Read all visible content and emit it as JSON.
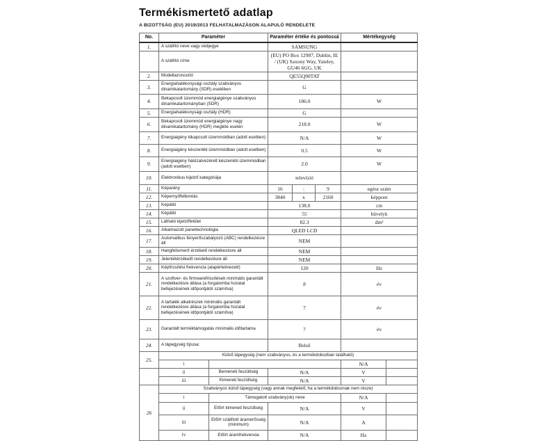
{
  "page": {
    "title": "Termékismertető adatlap",
    "subtitle": "A BIZOTTSÁG (EU) 2019/2013 FELHATALMAZÁSON ALAPULÓ RENDELETE"
  },
  "table": {
    "headers": [
      "No.",
      "Paraméter",
      "Paraméter értéke és pontossá",
      "Mértékegység"
    ],
    "rows": [
      {
        "name": "header-row",
        "cells": [
          {
            "t": "No.",
            "s": "hdr"
          },
          {
            "t": "Paraméter",
            "c": 2,
            "s": "hdr"
          },
          {
            "t": "Paraméter értéke és pontossá",
            "c": 3,
            "s": "hdr"
          },
          {
            "t": "Mértékegység",
            "c": 2,
            "s": "hdr"
          }
        ]
      },
      {
        "cells": [
          {
            "t": "1.",
            "s": "no"
          },
          {
            "t": "A szállító neve vagy védjegye",
            "c": 2,
            "s": "lbl"
          },
          {
            "t": "SAMSUNG",
            "c": 3,
            "s": "val"
          },
          {
            "t": "",
            "c": 2,
            "s": "unit"
          }
        ]
      },
      {
        "cells": [
          {
            "t": "",
            "s": "no"
          },
          {
            "t": "A szállító címe",
            "c": 2,
            "s": "lbl"
          },
          {
            "t": "(EU) PO Box 12987, Dublin, IE / (UK) Saxony Way, Yateley, GU46 6GG, UK",
            "c": 3,
            "s": "val"
          },
          {
            "t": "",
            "c": 2,
            "s": "unit"
          }
        ]
      },
      {
        "cells": [
          {
            "t": "2.",
            "s": "no"
          },
          {
            "t": "Modellazonosító",
            "c": 2,
            "s": "lbl"
          },
          {
            "t": "QE55Q90TAT",
            "c": 3,
            "s": "val"
          },
          {
            "t": "",
            "c": 2,
            "s": "unit"
          }
        ]
      },
      {
        "cells": [
          {
            "t": "3.",
            "s": "no"
          },
          {
            "t": "Energiahatékonysági osztály szabványos dinamikatartomány (SDR) esetében",
            "c": 2,
            "s": "lbl"
          },
          {
            "t": "G",
            "c": 3,
            "s": "val"
          },
          {
            "t": "",
            "c": 2,
            "s": "unit"
          }
        ]
      },
      {
        "cells": [
          {
            "t": "4.",
            "s": "no"
          },
          {
            "t": "Bekapcsolt üzemmód energiaigénye szabványos dinamikatartományban (SDR)",
            "c": 2,
            "s": "lbl"
          },
          {
            "t": "186.0",
            "c": 3,
            "s": "val"
          },
          {
            "t": "W",
            "c": 2,
            "s": "unit"
          }
        ]
      },
      {
        "cells": [
          {
            "t": "5.",
            "s": "no"
          },
          {
            "t": "Energiahatékonysági osztály (HDR)",
            "c": 2,
            "s": "lbl"
          },
          {
            "t": "G",
            "c": 3,
            "s": "val"
          },
          {
            "t": "",
            "c": 2,
            "s": "unit"
          }
        ]
      },
      {
        "cells": [
          {
            "t": "6.",
            "s": "no"
          },
          {
            "t": "Bekapcsolt üzemmód energiaigénye nagy dinamikatartomány (HDR) megléte esetén",
            "c": 2,
            "s": "lbl"
          },
          {
            "t": "218.0",
            "c": 3,
            "s": "val"
          },
          {
            "t": "W",
            "c": 2,
            "s": "unit"
          }
        ]
      },
      {
        "cells": [
          {
            "t": "7.",
            "s": "no"
          },
          {
            "t": "Energiaigény kikapcsolt üzemmódban (adott esetben)",
            "c": 2,
            "s": "lbl"
          },
          {
            "t": "N/A",
            "c": 3,
            "s": "val"
          },
          {
            "t": "W",
            "c": 2,
            "s": "unit"
          }
        ]
      },
      {
        "cells": [
          {
            "t": "8.",
            "s": "no"
          },
          {
            "t": "Energiaigény készenléti üzemmódban (adott esetben)",
            "c": 2,
            "s": "lbl"
          },
          {
            "t": "0.5",
            "c": 3,
            "s": "val"
          },
          {
            "t": "W",
            "c": 2,
            "s": "unit"
          }
        ]
      },
      {
        "cells": [
          {
            "t": "9.",
            "s": "no"
          },
          {
            "t": "Energiaigény hálózatvezérelt készenléti üzemmódban (adott esetben)",
            "c": 2,
            "s": "lbl"
          },
          {
            "t": "2.0",
            "c": 3,
            "s": "val"
          },
          {
            "t": "W",
            "c": 2,
            "s": "unit"
          }
        ]
      },
      {
        "cells": [
          {
            "t": "10.",
            "s": "no"
          },
          {
            "t": "Elektronikus kijelző kategóriája",
            "c": 2,
            "s": "lbl"
          },
          {
            "t": "televízió",
            "c": 3,
            "s": "val"
          },
          {
            "t": "",
            "c": 2,
            "s": "unit"
          }
        ]
      },
      {
        "cells": [
          {
            "t": "11.",
            "s": "no"
          },
          {
            "t": "Képarány",
            "c": 2,
            "s": "lbl"
          },
          {
            "t": "16",
            "s": "val"
          },
          {
            "t": ":",
            "s": "val"
          },
          {
            "t": "9",
            "s": "val"
          },
          {
            "t": "egész szám",
            "c": 2,
            "s": "unit"
          }
        ]
      },
      {
        "cells": [
          {
            "t": "12.",
            "s": "no"
          },
          {
            "t": "Képernyőfelbontás",
            "c": 2,
            "s": "lbl"
          },
          {
            "t": "3840",
            "s": "val"
          },
          {
            "t": "x",
            "s": "val"
          },
          {
            "t": "2160",
            "s": "val"
          },
          {
            "t": "képpont",
            "c": 2,
            "s": "unit"
          }
        ]
      },
      {
        "cells": [
          {
            "t": "13.",
            "s": "no"
          },
          {
            "t": "Képátló",
            "c": 2,
            "s": "lbl"
          },
          {
            "t": "138.0",
            "c": 3,
            "s": "val"
          },
          {
            "t": "cm",
            "c": 2,
            "s": "unit"
          }
        ]
      },
      {
        "cells": [
          {
            "t": "14.",
            "s": "no"
          },
          {
            "t": "Képátló",
            "c": 2,
            "s": "lbl"
          },
          {
            "t": "55",
            "c": 3,
            "s": "val"
          },
          {
            "t": "hüvelyk",
            "c": 2,
            "s": "unit"
          }
        ]
      },
      {
        "cells": [
          {
            "t": "15.",
            "s": "no"
          },
          {
            "t": "Látható kijelzőfelület",
            "c": 2,
            "s": "lbl"
          },
          {
            "t": "82.3",
            "c": 3,
            "s": "val"
          },
          {
            "t": "dm²",
            "c": 2,
            "s": "unit"
          }
        ]
      },
      {
        "cells": [
          {
            "t": "16.",
            "s": "no"
          },
          {
            "t": "Alkalmazott paneltechnológia",
            "c": 2,
            "s": "lbl"
          },
          {
            "t": "QLED LCD",
            "c": 3,
            "s": "val"
          },
          {
            "t": "",
            "c": 2,
            "s": "unit"
          }
        ]
      },
      {
        "cells": [
          {
            "t": "17.",
            "s": "no"
          },
          {
            "t": "Automatikus fényerőszabályozó (ABC) rendelkezésre áll",
            "c": 2,
            "s": "lbl"
          },
          {
            "t": "NEM",
            "c": 3,
            "s": "val"
          },
          {
            "t": "",
            "c": 2,
            "s": "unit"
          }
        ]
      },
      {
        "cells": [
          {
            "t": "18.",
            "s": "no"
          },
          {
            "t": "Hangfelismerő érzékelő rendelkezésre áll",
            "c": 2,
            "s": "lbl"
          },
          {
            "t": "NEM",
            "c": 3,
            "s": "val"
          },
          {
            "t": "",
            "c": 2,
            "s": "unit"
          }
        ]
      },
      {
        "cells": [
          {
            "t": "19.",
            "s": "no"
          },
          {
            "t": "Jelenlétérzékelő rendelkezésre áll",
            "c": 2,
            "s": "lbl"
          },
          {
            "t": "NEM",
            "c": 3,
            "s": "val"
          },
          {
            "t": "",
            "c": 2,
            "s": "unit"
          }
        ]
      },
      {
        "cells": [
          {
            "t": "20.",
            "s": "no"
          },
          {
            "t": "Képfrissítési frekvencia (alapértelmezett)",
            "c": 2,
            "s": "lbl"
          },
          {
            "t": "120",
            "c": 3,
            "s": "val"
          },
          {
            "t": "Hz",
            "c": 2,
            "s": "unit"
          }
        ]
      },
      {
        "cells": [
          {
            "t": "21.",
            "s": "no"
          },
          {
            "t": "A szoftver- és firmwarefrissítések minimális garantált rendelkezésre állása (a forgalomba hozatal befejezésének időpontjától számítva)",
            "c": 2,
            "s": "lbl"
          },
          {
            "t": "8",
            "c": 3,
            "s": "val"
          },
          {
            "t": "év",
            "c": 2,
            "s": "unit"
          }
        ]
      },
      {
        "cells": [
          {
            "t": "22.",
            "s": "no"
          },
          {
            "t": "A tartalék alkatrészek minimális garantált rendelkezésre állása (a forgalomba hozatal befejezésének időpontjától számítva)",
            "c": 2,
            "s": "lbl"
          },
          {
            "t": "7",
            "c": 3,
            "s": "val"
          },
          {
            "t": "év",
            "c": 2,
            "s": "unit"
          }
        ]
      },
      {
        "cells": [
          {
            "t": "23.",
            "s": "no"
          },
          {
            "t": "Garantált terméktámogatás minimális időtartama",
            "c": 2,
            "s": "lbl"
          },
          {
            "t": "7",
            "c": 3,
            "s": "val"
          },
          {
            "t": "év",
            "c": 2,
            "s": "unit"
          }
        ]
      },
      {
        "cells": [
          {
            "t": "24.",
            "s": "no"
          },
          {
            "t": "A tápegység típusa:",
            "c": 2,
            "s": "lbl"
          },
          {
            "t": "Belső",
            "c": 3,
            "s": "val"
          },
          {
            "t": "",
            "c": 2,
            "s": "unit"
          }
        ]
      },
      {
        "name": "section-25-header-row",
        "cells": [
          {
            "t": "25.",
            "s": "no",
            "r": 2
          },
          {
            "t": "Külső tápegység (nem szabványos, és a termékdobozban található)",
            "c": 7,
            "s": "sec"
          }
        ]
      },
      {
        "cells": [
          {
            "t": "i",
            "s": "rom"
          },
          {
            "t": "",
            "c": 4,
            "s": "sub"
          },
          {
            "t": "N/A",
            "s": "val"
          },
          {
            "t": "",
            "s": "val"
          }
        ]
      },
      {
        "cells": [
          {
            "t": "",
            "s": "no",
            "r": 2
          },
          {
            "t": "ii",
            "s": "rom"
          },
          {
            "t": "Bemeneti feszültség",
            "s": "sub"
          },
          {
            "t": "N/A",
            "c": 3,
            "s": "val"
          },
          {
            "t": "V",
            "s": "unit"
          },
          {
            "t": "",
            "s": "val"
          }
        ]
      },
      {
        "cells": [
          {
            "t": "iii",
            "s": "rom"
          },
          {
            "t": "Kimeneti feszültség",
            "s": "sub"
          },
          {
            "t": "N/A",
            "c": 3,
            "s": "val"
          },
          {
            "t": "V",
            "s": "unit"
          },
          {
            "t": "",
            "s": "val"
          }
        ]
      },
      {
        "name": "section-26-header-row",
        "cells": [
          {
            "t": "26",
            "s": "no",
            "r": 5
          },
          {
            "t": "Szabványos külső tápegység (vagy annak megfelelő, ha a termékdoboznak nem része)",
            "c": 7,
            "s": "sec"
          }
        ]
      },
      {
        "cells": [
          {
            "t": "i",
            "s": "rom"
          },
          {
            "t": "Támogatott szabvány(ok) neve",
            "c": 4,
            "s": "sub"
          },
          {
            "t": "N/A",
            "s": "val"
          },
          {
            "t": "",
            "s": "val"
          }
        ]
      },
      {
        "cells": [
          {
            "t": "ii",
            "s": "rom"
          },
          {
            "t": "Előírt kimeneti feszültség",
            "s": "sub"
          },
          {
            "t": "N/A",
            "c": 3,
            "s": "val"
          },
          {
            "t": "V",
            "s": "unit"
          },
          {
            "t": "",
            "s": "val"
          }
        ]
      },
      {
        "cells": [
          {
            "t": "iii",
            "s": "rom"
          },
          {
            "t": "Előírt szállított áramerősség (minimum)",
            "s": "sub"
          },
          {
            "t": "N/A",
            "c": 3,
            "s": "val"
          },
          {
            "t": "A",
            "s": "unit"
          },
          {
            "t": "",
            "s": "val"
          }
        ]
      },
      {
        "cells": [
          {
            "t": "iv",
            "s": "rom"
          },
          {
            "t": "Előírt áramfrekvencia",
            "s": "sub"
          },
          {
            "t": "N/A",
            "c": 3,
            "s": "val"
          },
          {
            "t": "Hz",
            "s": "unit"
          },
          {
            "t": "",
            "s": "val"
          }
        ]
      }
    ]
  }
}
